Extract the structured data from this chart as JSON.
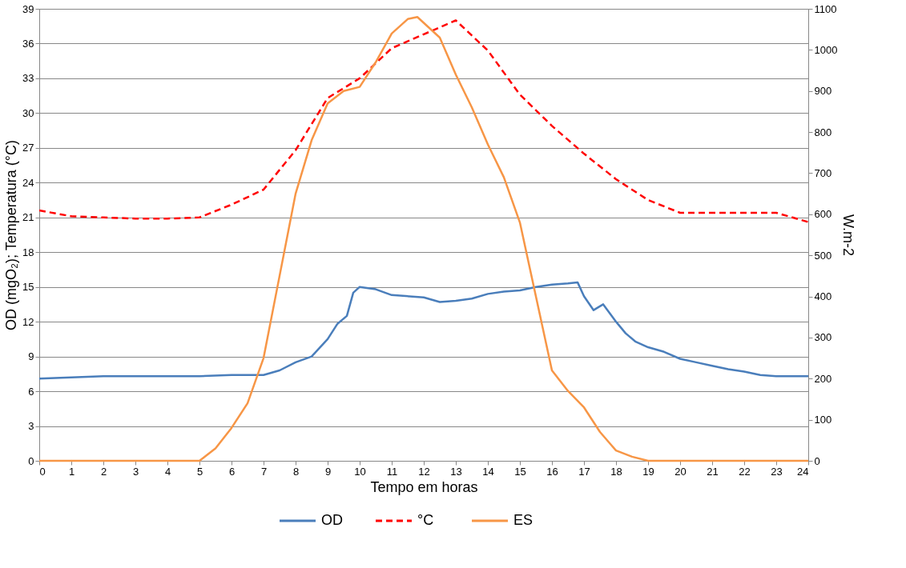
{
  "chart_data": {
    "type": "line",
    "xlabel": "Tempo em horas",
    "ylabel": "OD (mgO₂); Temperatura (°C)",
    "y2label": "W.m-2",
    "xlim": [
      0,
      24
    ],
    "xticks": [
      0,
      1,
      2,
      3,
      4,
      5,
      6,
      7,
      8,
      9,
      10,
      11,
      12,
      13,
      14,
      15,
      16,
      17,
      18,
      19,
      20,
      21,
      22,
      23,
      24
    ],
    "ylim": [
      0,
      39
    ],
    "yticks": [
      0,
      3,
      6,
      9,
      12,
      15,
      18,
      21,
      24,
      27,
      30,
      33,
      36,
      39
    ],
    "y2lim": [
      0,
      1100
    ],
    "y2ticks": [
      0,
      100,
      200,
      300,
      400,
      500,
      600,
      700,
      800,
      900,
      1000,
      1100
    ],
    "grid": "y",
    "legend": "bottom",
    "marker": "none",
    "series": [
      {
        "name": "OD",
        "color": "#4a7ebb",
        "line_style": "solid",
        "x": [
          0,
          1,
          2,
          3,
          4,
          5,
          6,
          7,
          7.5,
          8,
          8.5,
          9,
          9.3,
          9.6,
          9.8,
          10,
          10.5,
          11,
          12,
          12.5,
          13,
          13.5,
          14,
          14.5,
          15,
          15.5,
          16,
          16.5,
          16.8,
          17,
          17.3,
          17.6,
          18,
          18.3,
          18.6,
          19,
          19.5,
          20,
          20.5,
          21,
          21.5,
          22,
          22.5,
          23,
          24
        ],
        "values": [
          7.1,
          7.2,
          7.3,
          7.3,
          7.3,
          7.3,
          7.4,
          7.4,
          7.8,
          8.5,
          9.0,
          10.5,
          11.8,
          12.5,
          14.5,
          15.0,
          14.8,
          14.3,
          14.1,
          13.7,
          13.8,
          14.0,
          14.4,
          14.6,
          14.7,
          15.0,
          15.2,
          15.3,
          15.4,
          14.2,
          13.0,
          13.5,
          12.0,
          11.0,
          10.3,
          9.8,
          9.4,
          8.8,
          8.5,
          8.2,
          7.9,
          7.7,
          7.4,
          7.3,
          7.3
        ]
      },
      {
        "name": "°C",
        "color": "#ff0000",
        "line_style": "dashed",
        "x": [
          0,
          1,
          2,
          3,
          4,
          5,
          6,
          7,
          8,
          9,
          10,
          11,
          12,
          13,
          14,
          15,
          16,
          17,
          18,
          19,
          20,
          21,
          22,
          23,
          24
        ],
        "values": [
          21.6,
          21.1,
          21.0,
          20.9,
          20.9,
          21.0,
          22.1,
          23.4,
          26.8,
          31.3,
          33.0,
          35.6,
          36.8,
          38.0,
          35.4,
          31.6,
          28.9,
          26.5,
          24.3,
          22.5,
          21.4,
          21.4,
          21.4,
          21.4,
          20.6
        ]
      },
      {
        "name": "ES",
        "color": "#f79646",
        "line_style": "solid",
        "axis": "y2",
        "x": [
          0,
          4.5,
          5,
          5.5,
          6,
          6.5,
          7,
          7.5,
          8,
          8.5,
          9,
          9.5,
          10,
          10.5,
          11,
          11.5,
          11.8,
          12.5,
          13,
          13.5,
          14,
          14.5,
          15,
          15.5,
          16,
          16.5,
          17,
          17.5,
          18,
          18.5,
          19,
          24
        ],
        "values": [
          0,
          0,
          0,
          30,
          80,
          140,
          250,
          450,
          650,
          780,
          870,
          900,
          910,
          970,
          1040,
          1075,
          1080,
          1030,
          940,
          860,
          770,
          690,
          580,
          400,
          220,
          170,
          130,
          70,
          25,
          10,
          0,
          0
        ]
      }
    ]
  }
}
